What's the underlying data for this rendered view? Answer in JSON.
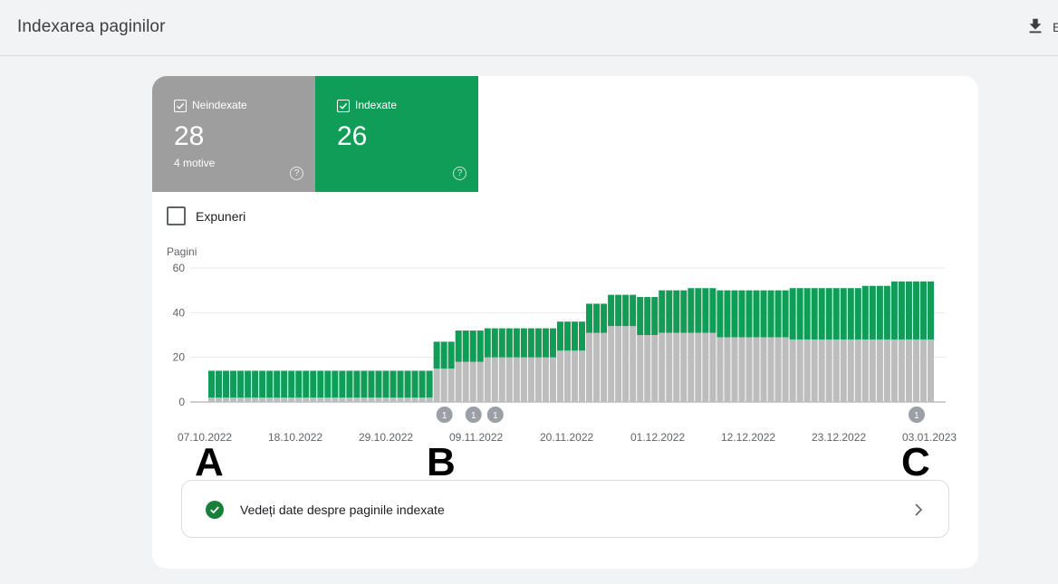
{
  "header": {
    "title": "Indexarea paginilor",
    "export_label": "E",
    "export_icon": "download-icon"
  },
  "tiles": [
    {
      "label": "Neindexate",
      "count": "28",
      "sub": "4 motive",
      "color": "#9e9e9e",
      "checked": true
    },
    {
      "label": "Indexate",
      "count": "26",
      "sub": "",
      "color": "#0f9d58",
      "checked": true
    }
  ],
  "impressions": {
    "label": "Expuneri",
    "checked": false
  },
  "chart_data": {
    "type": "bar",
    "stacked": true,
    "ylabel": "Pagini",
    "ylim": [
      0,
      60
    ],
    "yticks": [
      0,
      20,
      40,
      60
    ],
    "x_tick_labels": [
      "07.10.2022",
      "18.10.2022",
      "29.10.2022",
      "09.11.2022",
      "20.11.2022",
      "01.12.2022",
      "12.12.2022",
      "23.12.2022",
      "03.01.2023"
    ],
    "colors": {
      "not_indexed": "#bdbdbd",
      "indexed": "#0f9d58"
    },
    "series": [
      {
        "values": [
          2,
          2,
          2,
          2,
          2,
          2,
          2,
          2,
          2,
          2,
          2,
          2,
          2,
          2,
          2,
          2,
          2,
          2,
          2,
          2,
          2,
          2,
          2,
          2,
          2,
          2,
          2,
          2,
          2,
          2,
          2,
          15,
          15,
          15,
          18,
          18,
          18,
          18,
          20,
          20,
          20,
          20,
          20,
          20,
          20,
          20,
          20,
          20,
          23,
          23,
          23,
          23,
          31,
          31,
          31,
          34,
          34,
          34,
          34,
          30,
          30,
          30,
          31,
          31,
          31,
          31,
          31,
          31,
          31,
          31,
          29,
          29,
          29,
          29,
          29,
          29,
          29,
          29,
          29,
          29,
          28,
          28,
          28,
          28,
          28,
          28,
          28,
          28,
          28,
          28,
          28,
          28,
          28,
          28,
          28,
          28,
          28,
          28,
          28,
          28
        ]
      },
      {
        "values": [
          12,
          12,
          12,
          12,
          12,
          12,
          12,
          12,
          12,
          12,
          12,
          12,
          12,
          12,
          12,
          12,
          12,
          12,
          12,
          12,
          12,
          12,
          12,
          12,
          12,
          12,
          12,
          12,
          12,
          12,
          12,
          12,
          12,
          12,
          14,
          14,
          14,
          14,
          13,
          13,
          13,
          13,
          13,
          13,
          13,
          13,
          13,
          13,
          13,
          13,
          13,
          13,
          13,
          13,
          13,
          14,
          14,
          14,
          14,
          17,
          17,
          17,
          19,
          19,
          19,
          19,
          20,
          20,
          20,
          20,
          21,
          21,
          21,
          21,
          21,
          21,
          21,
          21,
          21,
          21,
          23,
          23,
          23,
          23,
          23,
          23,
          23,
          23,
          23,
          23,
          24,
          24,
          24,
          24,
          26,
          26,
          26,
          26,
          26,
          26
        ]
      }
    ],
    "annotations": [
      {
        "index": 32,
        "label": "1"
      },
      {
        "index": 36,
        "label": "1"
      },
      {
        "index": 39,
        "label": "1"
      },
      {
        "index": 97,
        "label": "1"
      }
    ]
  },
  "markers": {
    "a": "A",
    "b": "B",
    "c": "C"
  },
  "link": {
    "text": "Vedeți date despre paginile indexate",
    "status_icon": "check-circle-icon",
    "arrow_icon": "chevron-right-icon"
  }
}
